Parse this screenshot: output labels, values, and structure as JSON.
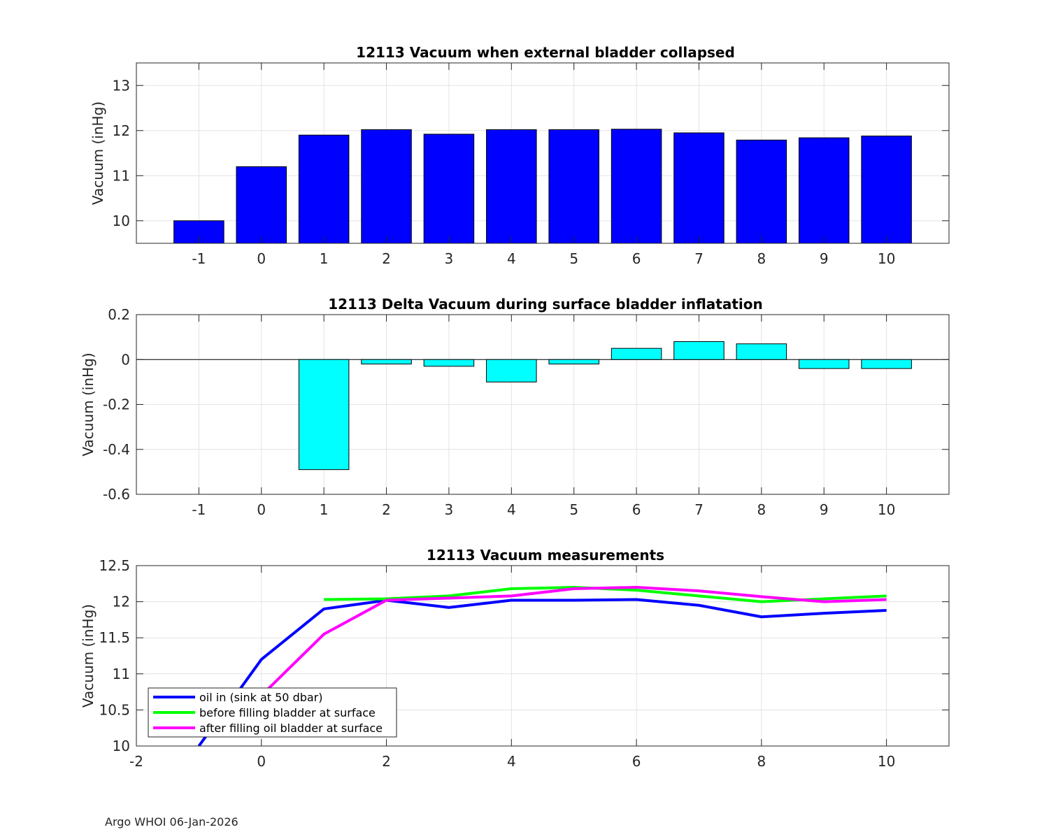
{
  "figure": {
    "footer": "Argo WHOI 06-Jan-2026"
  },
  "chart_data": [
    {
      "type": "bar",
      "title": "12113 Vacuum when external bladder collapsed",
      "xlabel": "",
      "ylabel": "Vacuum (inHg)",
      "categories": [
        "-1",
        "0",
        "1",
        "2",
        "3",
        "4",
        "5",
        "6",
        "7",
        "8",
        "9",
        "10"
      ],
      "x": [
        -1,
        0,
        1,
        2,
        3,
        4,
        5,
        6,
        7,
        8,
        9,
        10
      ],
      "values": [
        10.0,
        11.2,
        11.9,
        12.02,
        11.92,
        12.02,
        12.02,
        12.03,
        11.95,
        11.79,
        11.84,
        11.88
      ],
      "xlim": [
        -2,
        11
      ],
      "ylim": [
        9.5,
        13.5
      ],
      "yticks": [
        10,
        11,
        12,
        13
      ],
      "ytick_labels": [
        "10",
        "11",
        "12",
        "13"
      ],
      "grid": true,
      "color": "#0000FF"
    },
    {
      "type": "bar",
      "title": "12113 Delta Vacuum during surface bladder inflatation",
      "xlabel": "",
      "ylabel": "Vacuum (inHg)",
      "categories": [
        "-1",
        "0",
        "1",
        "2",
        "3",
        "4",
        "5",
        "6",
        "7",
        "8",
        "9",
        "10"
      ],
      "x": [
        -1,
        0,
        1,
        2,
        3,
        4,
        5,
        6,
        7,
        8,
        9,
        10
      ],
      "values": [
        0,
        0,
        -0.49,
        -0.02,
        -0.03,
        -0.1,
        -0.02,
        0.05,
        0.08,
        0.07,
        -0.04,
        -0.04
      ],
      "xlim": [
        -2,
        11
      ],
      "ylim": [
        -0.6,
        0.2
      ],
      "yticks": [
        -0.6,
        -0.4,
        -0.2,
        0,
        0.2
      ],
      "ytick_labels": [
        "-0.6",
        "-0.4",
        "-0.2",
        "0",
        "0.2"
      ],
      "grid": true,
      "color": "#00FFFF"
    },
    {
      "type": "line",
      "title": "12113 Vacuum measurements",
      "xlabel": "",
      "ylabel": "Vacuum (inHg)",
      "xlim": [
        -2,
        11
      ],
      "ylim": [
        10,
        12.5
      ],
      "xticks": [
        -2,
        0,
        2,
        4,
        6,
        8,
        10
      ],
      "xtick_labels": [
        "-2",
        "0",
        "2",
        "4",
        "6",
        "8",
        "10"
      ],
      "yticks": [
        10,
        10.5,
        11,
        11.5,
        12,
        12.5
      ],
      "ytick_labels": [
        "10",
        "10.5",
        "11",
        "11.5",
        "12",
        "12.5"
      ],
      "grid": true,
      "legend_position": "bottom-left",
      "series": [
        {
          "name": "oil in (sink at 50 dbar)",
          "color": "#0000FF",
          "x": [
            -1,
            0,
            1,
            2,
            3,
            4,
            5,
            6,
            7,
            8,
            9,
            10
          ],
          "values": [
            10.0,
            11.2,
            11.9,
            12.02,
            11.92,
            12.02,
            12.02,
            12.03,
            11.95,
            11.79,
            11.84,
            11.88
          ]
        },
        {
          "name": "before filling bladder at surface",
          "color": "#00FF00",
          "x": [
            1,
            2,
            3,
            4,
            5,
            6,
            7,
            8,
            9,
            10
          ],
          "values": [
            12.03,
            12.04,
            12.08,
            12.18,
            12.2,
            12.16,
            12.08,
            12.0,
            12.04,
            12.08
          ]
        },
        {
          "name": "after filling oil bladder at surface",
          "color": "#FF00FF",
          "x": [
            0,
            1,
            2,
            3,
            4,
            5,
            6,
            7,
            8,
            9,
            10
          ],
          "values": [
            10.7,
            11.55,
            12.02,
            12.05,
            12.08,
            12.18,
            12.2,
            12.15,
            12.07,
            12.0,
            12.03
          ]
        }
      ]
    }
  ]
}
